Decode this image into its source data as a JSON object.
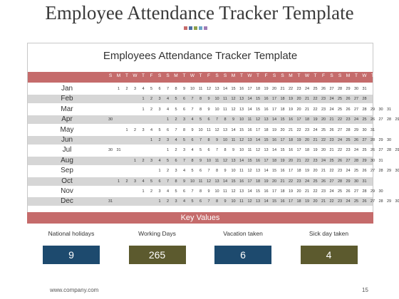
{
  "title": "Employee Attendance Tracker Template",
  "decor_colors": [
    "#c56b6b",
    "#4b6fa6",
    "#8fa14b",
    "#6aa6c9",
    "#9e7cb5"
  ],
  "inner_title": "Employees Attendance Tracker Template",
  "day_headers": [
    "S",
    "M",
    "T",
    "W",
    "T",
    "F",
    "S",
    "S",
    "M",
    "T",
    "W",
    "T",
    "F",
    "S",
    "S",
    "M",
    "T",
    "W",
    "T",
    "F",
    "S",
    "S",
    "M",
    "T",
    "W",
    "T",
    "F",
    "S",
    "S",
    "M",
    "T",
    "W",
    "T",
    "F",
    "S"
  ],
  "months": [
    {
      "name": "Jan",
      "start": 1,
      "days": 31
    },
    {
      "name": "Feb",
      "start": 4,
      "days": 28
    },
    {
      "name": "Mar",
      "start": 4,
      "days": 31
    },
    {
      "name": "Apr",
      "start": 7,
      "days": 29,
      "prefix": [
        "30"
      ]
    },
    {
      "name": "May",
      "start": 2,
      "days": 31
    },
    {
      "name": "Jun",
      "start": 5,
      "days": 30
    },
    {
      "name": "Jul",
      "start": 7,
      "days": 29,
      "prefix": [
        "30",
        "31"
      ]
    },
    {
      "name": "Aug",
      "start": 3,
      "days": 31
    },
    {
      "name": "Sep",
      "start": 6,
      "days": 30
    },
    {
      "name": "Oct",
      "start": 1,
      "days": 31
    },
    {
      "name": "Nov",
      "start": 4,
      "days": 30
    },
    {
      "name": "Dec",
      "start": 6,
      "days": 30,
      "prefix": [
        "31"
      ]
    }
  ],
  "key_values_label": "Key  Values",
  "stats": [
    {
      "label": "National holidays",
      "value": "9",
      "color": "#1d4a6e"
    },
    {
      "label": "Working  Days",
      "value": "265",
      "color": "#5c5a2e"
    },
    {
      "label": "Vacation taken",
      "value": "6",
      "color": "#1d4a6e"
    },
    {
      "label": "Sick day taken",
      "value": "4",
      "color": "#5c5a2e"
    }
  ],
  "footer_url": "www.company.com",
  "page_number": "15"
}
